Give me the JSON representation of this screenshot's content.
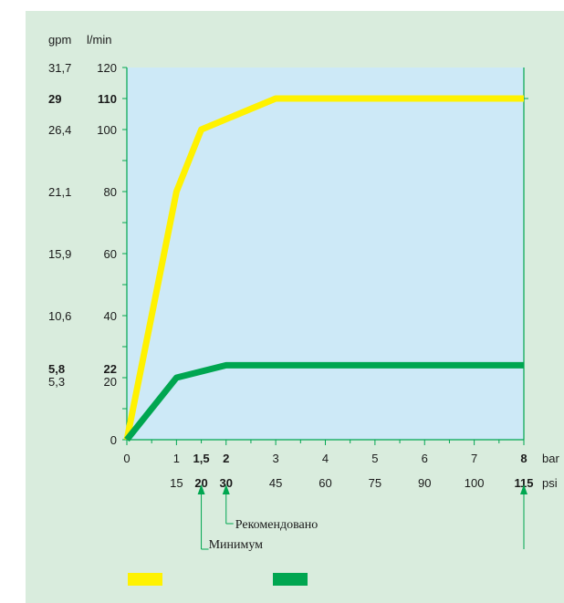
{
  "chart_data": {
    "type": "line",
    "x_unit_bar": "bar",
    "x_unit_psi": "psi",
    "y_unit_gpm": "gpm",
    "y_unit_lmin": "l/min",
    "xlim": [
      0,
      8
    ],
    "ylim": [
      0,
      120
    ],
    "grid": false,
    "x_ticks_bar": [
      {
        "value": 0,
        "label": "0",
        "bold": false
      },
      {
        "value": 1,
        "label": "1",
        "bold": false
      },
      {
        "value": 1.5,
        "label": "1,5",
        "bold": true
      },
      {
        "value": 2,
        "label": "2",
        "bold": true
      },
      {
        "value": 3,
        "label": "3",
        "bold": false
      },
      {
        "value": 4,
        "label": "4",
        "bold": false
      },
      {
        "value": 5,
        "label": "5",
        "bold": false
      },
      {
        "value": 6,
        "label": "6",
        "bold": false
      },
      {
        "value": 7,
        "label": "7",
        "bold": false
      },
      {
        "value": 8,
        "label": "8",
        "bold": true
      }
    ],
    "x_ticks_psi": [
      {
        "value": 1,
        "label": "15",
        "bold": false
      },
      {
        "value": 1.5,
        "label": "20",
        "bold": true
      },
      {
        "value": 2,
        "label": "30",
        "bold": true
      },
      {
        "value": 3,
        "label": "45",
        "bold": false
      },
      {
        "value": 4,
        "label": "60",
        "bold": false
      },
      {
        "value": 5,
        "label": "75",
        "bold": false
      },
      {
        "value": 6,
        "label": "90",
        "bold": false
      },
      {
        "value": 7,
        "label": "100",
        "bold": false
      },
      {
        "value": 8,
        "label": "115",
        "bold": true
      }
    ],
    "y_ticks_lmin": [
      {
        "value": 0,
        "label": "0",
        "bold": false
      },
      {
        "value": 20,
        "label": "20",
        "bold": false
      },
      {
        "value": 22,
        "label": "22",
        "bold": true
      },
      {
        "value": 40,
        "label": "40",
        "bold": false
      },
      {
        "value": 60,
        "label": "60",
        "bold": false
      },
      {
        "value": 80,
        "label": "80",
        "bold": false
      },
      {
        "value": 100,
        "label": "100",
        "bold": false
      },
      {
        "value": 110,
        "label": "110",
        "bold": true
      },
      {
        "value": 120,
        "label": "120",
        "bold": false
      }
    ],
    "y_ticks_gpm": [
      {
        "value": 20,
        "label": "5,3",
        "bold": false
      },
      {
        "value": 22,
        "label": "5,8",
        "bold": true
      },
      {
        "value": 40,
        "label": "10,6",
        "bold": false
      },
      {
        "value": 60,
        "label": "15,9",
        "bold": false
      },
      {
        "value": 80,
        "label": "21,1",
        "bold": false
      },
      {
        "value": 100,
        "label": "26,4",
        "bold": false
      },
      {
        "value": 110,
        "label": "29",
        "bold": true
      },
      {
        "value": 120,
        "label": "31,7",
        "bold": false
      }
    ],
    "series": [
      {
        "color": "#fff200",
        "x": [
          0,
          1,
          1.5,
          3,
          8
        ],
        "y": [
          0,
          80,
          100,
          110,
          110
        ]
      },
      {
        "color": "#00a650",
        "x": [
          0,
          1,
          2,
          8
        ],
        "y": [
          0,
          20,
          24,
          24
        ]
      }
    ],
    "annotations": [
      {
        "label": "Рекомендовано",
        "x": 2
      },
      {
        "label": "Минимум",
        "x": 1.5
      },
      {
        "label": "",
        "x": 8
      }
    ]
  },
  "colors": {
    "panel_bg": "#d9ecdd",
    "plot_bg": "#cde9f7",
    "axis": "#00a650",
    "annotation": "#00a650"
  }
}
